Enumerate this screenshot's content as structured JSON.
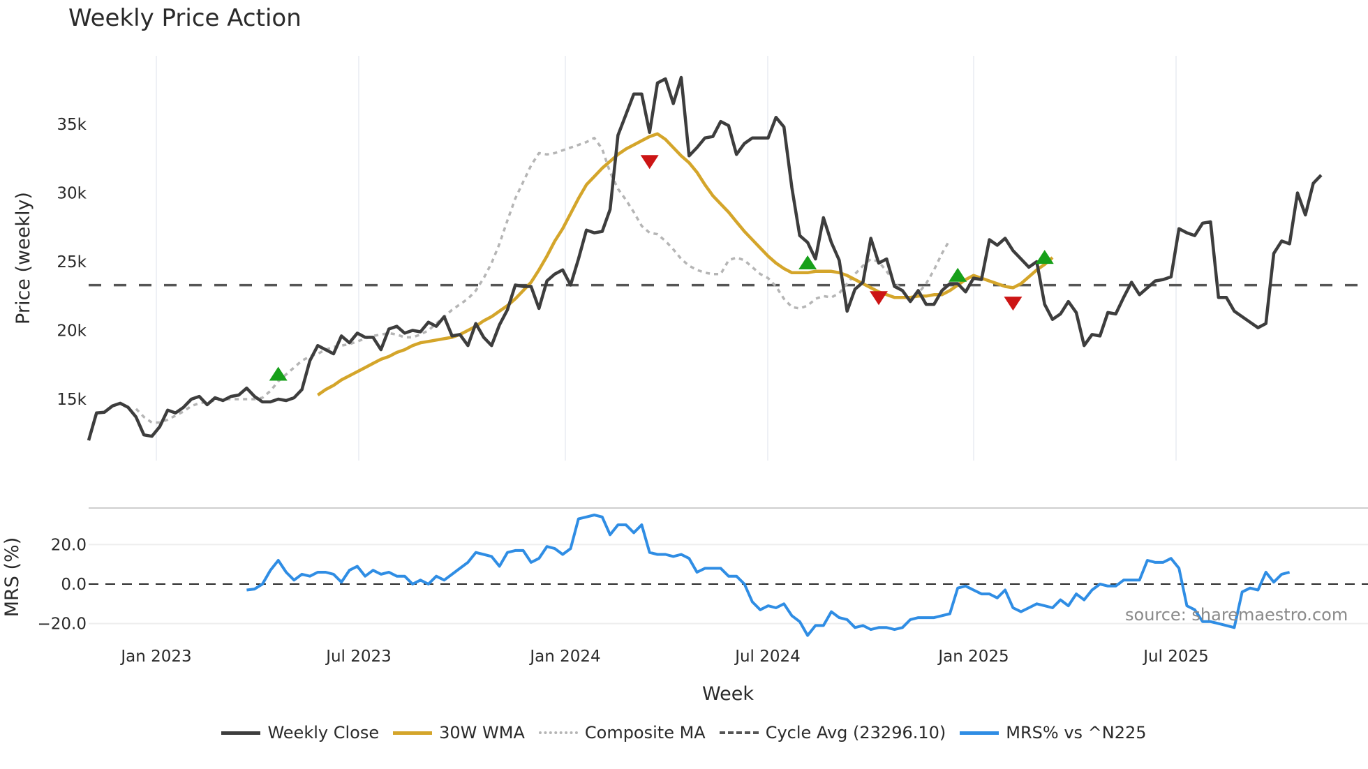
{
  "title": "Weekly Price Action",
  "source": "source: sharemaestro.com",
  "colors": {
    "close": "#3d3d3d",
    "wma": "#d4a52a",
    "composite": "#b5b5b5",
    "cycle": "#555555",
    "mrs": "#2f8de4",
    "buy": "#17a01a",
    "sell": "#cc1515"
  },
  "legend": [
    "Weekly Close",
    "30W WMA",
    "Composite MA",
    "Cycle Avg (23296.10)",
    "MRS% vs ^N225"
  ],
  "chart_data": [
    {
      "type": "line",
      "title": "Weekly Price Action",
      "xlabel": "Week",
      "ylabel": "Price (weekly)",
      "x_ticks": [
        "Jan 2023",
        "Jul 2023",
        "Jan 2024",
        "Jul 2024",
        "Jan 2025",
        "Jul 2025"
      ],
      "y_ticks": [
        "15k",
        "20k",
        "25k",
        "30k",
        "35k"
      ],
      "ylim": [
        11500,
        39000
      ],
      "cycle_avg": 23296.1,
      "series": [
        {
          "name": "Weekly Close",
          "values": [
            12000,
            14000,
            14050,
            14500,
            14700,
            14400,
            13700,
            12400,
            12300,
            13000,
            14200,
            14000,
            14400,
            15000,
            15200,
            14600,
            15100,
            14900,
            15200,
            15300,
            15800,
            15200,
            14800,
            14800,
            15000,
            14900,
            15100,
            15700,
            17800,
            18900,
            18600,
            18300,
            19600,
            19100,
            19800,
            19500,
            19500,
            18600,
            20100,
            20300,
            19800,
            20000,
            19900,
            20600,
            20300,
            21000,
            19600,
            19700,
            18900,
            20500,
            19500,
            18900,
            20400,
            21500,
            23300,
            23200,
            23200,
            21600,
            23600,
            24100,
            24400,
            23300,
            25200,
            27300,
            27100,
            27200,
            28800,
            34200,
            35700,
            37200,
            37200,
            34400,
            38000,
            38300,
            36500,
            38400,
            32700,
            33300,
            34000,
            34100,
            35200,
            34900,
            32800,
            33600,
            34000,
            34000,
            34000,
            35500,
            34800,
            30400,
            26900,
            26400,
            25200,
            28200,
            26400,
            25100,
            21400,
            23000,
            23500,
            26700,
            24900,
            25200,
            23200,
            22900,
            22100,
            22900,
            21900,
            21900,
            22900,
            23400,
            23400,
            22800,
            23800,
            23700,
            26600,
            26200,
            26700,
            25800,
            25200,
            24600,
            25000,
            21900,
            20800,
            21200,
            22100,
            21300,
            18900,
            19700,
            19600,
            21300,
            21200,
            22400,
            23500,
            22600,
            23100,
            23600,
            23700,
            23900,
            27400,
            27100,
            26900,
            27800,
            27900,
            22400,
            22400,
            21400,
            21000,
            20600,
            20200,
            20500,
            25600,
            26500,
            26300,
            30000,
            28400,
            30700,
            31300
          ]
        },
        {
          "name": "30W WMA",
          "start_index": 29,
          "values": [
            15300,
            15700,
            16000,
            16400,
            16700,
            17000,
            17300,
            17600,
            17900,
            18100,
            18400,
            18600,
            18900,
            19100,
            19200,
            19300,
            19400,
            19500,
            19700,
            20000,
            20300,
            20700,
            21000,
            21400,
            21800,
            22300,
            22900,
            23500,
            24400,
            25400,
            26500,
            27400,
            28500,
            29600,
            30600,
            31200,
            31800,
            32300,
            32800,
            33200,
            33500,
            33800,
            34100,
            34300,
            33900,
            33300,
            32700,
            32200,
            31500,
            30600,
            29800,
            29200,
            28600,
            27900,
            27200,
            26600,
            26000,
            25400,
            24900,
            24500,
            24200,
            24200,
            24200,
            24300,
            24300,
            24300,
            24200,
            24000,
            23700,
            23400,
            23100,
            22800,
            22600,
            22400,
            22400,
            22400,
            22500,
            22500,
            22600,
            22600,
            22900,
            23300,
            23700,
            24000,
            23800,
            23600,
            23400,
            23200,
            23100,
            23400,
            23900,
            24400,
            24800,
            25300
          ]
        },
        {
          "name": "Composite MA",
          "start_index": 6,
          "values": [
            14300,
            13700,
            13300,
            13300,
            13500,
            13800,
            14100,
            14500,
            14700,
            14800,
            14900,
            15000,
            15000,
            15000,
            15000,
            15000,
            15100,
            15600,
            16300,
            16800,
            17300,
            17800,
            18100,
            18300,
            18600,
            18800,
            18900,
            19000,
            19200,
            19400,
            19600,
            19700,
            19800,
            19700,
            19500,
            19500,
            19700,
            20000,
            20500,
            21000,
            21500,
            21900,
            22300,
            22900,
            23800,
            24900,
            26300,
            28000,
            29600,
            30800,
            32000,
            32900,
            32800,
            32900,
            33100,
            33300,
            33500,
            33700,
            34000,
            33200,
            31500,
            30300,
            29500,
            28600,
            27600,
            27100,
            27000,
            26500,
            25900,
            25200,
            24700,
            24400,
            24200,
            24100,
            24100,
            25100,
            25300,
            25100,
            24600,
            24100,
            23800,
            23200,
            22300,
            21700,
            21600,
            21800,
            22300,
            22500,
            22400,
            22700,
            23400,
            24100,
            24700,
            25200,
            25000,
            24300,
            23500,
            22900,
            22300,
            22700,
            23400,
            24400,
            25600,
            26600
          ]
        },
        {
          "name": "MRS% vs ^N225",
          "start_index": 20,
          "values": [
            -3,
            -2.5,
            0,
            7,
            12,
            6,
            2,
            5,
            4,
            6,
            6,
            5,
            1,
            7,
            9,
            4,
            7,
            5,
            6,
            4,
            4,
            0,
            2,
            0,
            4,
            2,
            5,
            8,
            11,
            16,
            15,
            14,
            9,
            16,
            17,
            17,
            11,
            13,
            19,
            18,
            15,
            18,
            33,
            34,
            35,
            34,
            25,
            30,
            30,
            26,
            30,
            16,
            15,
            15,
            14,
            15,
            13,
            6,
            8,
            8,
            8,
            4,
            4,
            0,
            -9,
            -13,
            -11,
            -12,
            -10,
            -16,
            -19,
            -26,
            -21,
            -21,
            -14,
            -17,
            -18,
            -22,
            -21,
            -23,
            -22,
            -22,
            -23,
            -22,
            -18,
            -17,
            -17,
            -17,
            -16,
            -15,
            -2,
            -1,
            -3,
            -5,
            -5,
            -7,
            -3,
            -12,
            -14,
            -12,
            -10,
            -11,
            -12,
            -8,
            -11,
            -5,
            -8,
            -3,
            0,
            -1,
            -1,
            2,
            2,
            2,
            12,
            11,
            11,
            13,
            8,
            -11,
            -13,
            -19,
            -19,
            -20,
            -21,
            -22,
            -4,
            -2,
            -3,
            6,
            1,
            5,
            6
          ]
        }
      ],
      "signals": [
        {
          "type": "buy",
          "index": 24,
          "value": 16800
        },
        {
          "type": "sell",
          "index": 71,
          "value": 32300
        },
        {
          "type": "buy",
          "index": 91,
          "value": 24900
        },
        {
          "type": "sell",
          "index": 100,
          "value": 22400
        },
        {
          "type": "buy",
          "index": 110,
          "value": 24000
        },
        {
          "type": "sell",
          "index": 117,
          "value": 22000
        },
        {
          "type": "buy",
          "index": 121,
          "value": 25300
        }
      ]
    },
    {
      "type": "line",
      "ylabel": "MRS (%)",
      "y_ticks": [
        "20.0",
        "0.0",
        "−20.0"
      ],
      "ylim": [
        -30,
        37
      ]
    }
  ]
}
